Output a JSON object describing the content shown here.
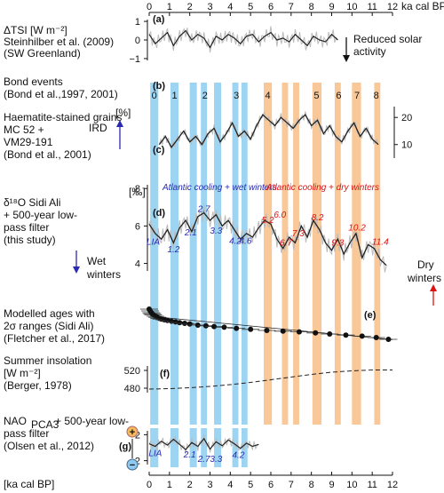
{
  "chart_data": {
    "type": "line",
    "x_axis": {
      "label_top": "ka cal BP",
      "label_bottom": "[ka cal BP]",
      "range": [
        0,
        12
      ],
      "ticks": [
        0,
        1,
        2,
        3,
        4,
        5,
        6,
        7,
        8,
        9,
        10,
        11,
        12
      ]
    },
    "bands": {
      "blue": [
        [
          0.05,
          0.45
        ],
        [
          1.05,
          1.45
        ],
        [
          2.0,
          2.35
        ],
        [
          2.55,
          2.85
        ],
        [
          3.2,
          3.55
        ],
        [
          4.1,
          4.4
        ],
        [
          4.55,
          4.85
        ]
      ],
      "orange": [
        [
          5.65,
          6.05
        ],
        [
          6.55,
          6.85
        ],
        [
          7.1,
          7.4
        ],
        [
          8.05,
          8.5
        ],
        [
          9.15,
          9.45
        ],
        [
          10.0,
          10.45
        ],
        [
          11.1,
          11.4
        ]
      ],
      "blue_color": "#7cc6ee",
      "orange_color": "#f7b677"
    },
    "panels": {
      "a": {
        "letter": "(a)",
        "title": [
          "ΔTSI  [W m⁻²]",
          "Steinhilber et al. (2009)",
          "(SW Greenland)"
        ],
        "yticks": [
          1,
          0,
          -1
        ],
        "ylim": [
          -1.1,
          1.1
        ],
        "annotation": [
          "Reduced solar",
          "activity"
        ],
        "x": [
          0,
          0.3,
          0.6,
          0.9,
          1.2,
          1.5,
          1.8,
          2.1,
          2.4,
          2.7,
          3.0,
          3.3,
          3.6,
          3.9,
          4.2,
          4.5,
          4.8,
          5.1,
          5.4,
          5.7,
          6.0,
          6.3,
          6.6,
          6.9,
          7.2,
          7.5,
          7.8,
          8.1,
          8.4,
          8.7,
          9.0,
          9.3
        ],
        "y": [
          0.3,
          -0.2,
          0.1,
          0.4,
          -0.3,
          0.2,
          0.5,
          0.0,
          0.3,
          0.1,
          -0.4,
          0.2,
          0.0,
          0.3,
          0.1,
          -0.2,
          0.2,
          0.3,
          -0.1,
          0.2,
          0.4,
          0.0,
          0.1,
          -0.1,
          0.3,
          0.0,
          -0.3,
          0.2,
          0.0,
          -0.1,
          0.3,
          0.0
        ]
      },
      "b": {
        "letter": "(b)",
        "title": [
          "Bond events",
          "(Bond et al.,1997, 2001)"
        ],
        "event_numbers": [
          {
            "label": "0",
            "x": 0.25,
            "color": "#111"
          },
          {
            "label": "1",
            "x": 1.25,
            "color": "#111"
          },
          {
            "label": "2",
            "x": 2.75,
            "color": "#111"
          },
          {
            "label": "3",
            "x": 4.3,
            "color": "#111"
          },
          {
            "label": "4",
            "x": 5.85,
            "color": "#111"
          },
          {
            "label": "5",
            "x": 8.25,
            "color": "#111"
          },
          {
            "label": "6",
            "x": 9.35,
            "color": "#888"
          },
          {
            "label": "7",
            "x": 10.25,
            "color": "#888"
          },
          {
            "label": "8",
            "x": 11.2,
            "color": "#888"
          }
        ]
      },
      "c": {
        "letter": "(c)",
        "title": [
          "Haematite-stained grains",
          "MC 52 +",
          "VM29-191",
          "(Bond et al., 2001)"
        ],
        "ylabel": "[%]",
        "ird_label": "IRD",
        "yticks": [
          20,
          10
        ],
        "ylim": [
          5,
          24
        ],
        "x": [
          0.5,
          0.8,
          1.1,
          1.4,
          1.7,
          2.0,
          2.3,
          2.6,
          2.9,
          3.2,
          3.5,
          3.8,
          4.1,
          4.4,
          4.7,
          5.0,
          5.3,
          5.6,
          5.9,
          6.2,
          6.5,
          6.8,
          7.1,
          7.4,
          7.7,
          8.0,
          8.3,
          8.6,
          8.9,
          9.2,
          9.5,
          9.8,
          10.1,
          10.4,
          10.7,
          11.0,
          11.3
        ],
        "y": [
          10,
          13,
          9,
          12,
          15,
          11,
          13,
          10,
          14,
          16,
          11,
          14,
          18,
          13,
          15,
          12,
          17,
          21,
          19,
          17,
          20,
          18,
          16,
          19,
          21,
          17,
          19,
          14,
          17,
          13,
          11,
          15,
          18,
          13,
          16,
          12,
          10
        ]
      },
      "d": {
        "letter": "(d)",
        "title": [
          "δ¹⁸O Sidi Ali",
          "+ 500-year low-",
          "pass filter",
          "(this study)"
        ],
        "ylabel": "[‰]",
        "yticks": [
          8,
          6,
          4
        ],
        "ylim": [
          3.6,
          8.2
        ],
        "header_blue": "Atlantic cooling + wet winters",
        "header_red": "Atlantic cooling + dry winters",
        "wet_label": "Wet",
        "wet_label2": "winters",
        "dry_label": "Dry",
        "dry_label2": "winters",
        "x": [
          0,
          0.3,
          0.6,
          0.9,
          1.2,
          1.5,
          1.8,
          2.1,
          2.4,
          2.7,
          3.0,
          3.3,
          3.6,
          3.9,
          4.2,
          4.5,
          4.8,
          5.1,
          5.4,
          5.7,
          6.0,
          6.3,
          6.6,
          6.9,
          7.2,
          7.5,
          7.8,
          8.1,
          8.4,
          8.7,
          9.0,
          9.3,
          9.6,
          9.9,
          10.2,
          10.5,
          10.8,
          11.1,
          11.4,
          11.7
        ],
        "y": [
          6.1,
          5.6,
          5.3,
          5.8,
          5.1,
          5.9,
          6.3,
          5.7,
          6.5,
          6.7,
          6.3,
          6.6,
          6.0,
          6.3,
          5.8,
          5.3,
          5.6,
          5.4,
          5.9,
          6.3,
          6.1,
          5.3,
          4.8,
          5.4,
          5.1,
          6.0,
          5.4,
          6.3,
          5.8,
          5.1,
          4.7,
          5.3,
          4.5,
          5.1,
          5.6,
          4.3,
          5.0,
          4.8,
          4.2,
          3.9
        ],
        "event_labels_blue": [
          {
            "text": "LIA",
            "x": 0.2,
            "y": 5.0
          },
          {
            "text": "1.2",
            "x": 1.2,
            "y": 4.6
          },
          {
            "text": "2.1",
            "x": 2.05,
            "y": 5.5
          },
          {
            "text": "2.7",
            "x": 2.7,
            "y": 6.75
          },
          {
            "text": "3.3",
            "x": 3.3,
            "y": 5.6
          },
          {
            "text": "4.2",
            "x": 4.25,
            "y": 5.05
          },
          {
            "text": "4.6",
            "x": 4.75,
            "y": 5.05
          }
        ],
        "event_labels_red": [
          {
            "text": "5.2",
            "x": 5.85,
            "y": 6.15
          },
          {
            "text": "6.0",
            "x": 6.45,
            "y": 6.45
          },
          {
            "text": "6.7",
            "x": 6.75,
            "y": 4.95
          },
          {
            "text": "7.3",
            "x": 7.35,
            "y": 5.45
          },
          {
            "text": "8.2",
            "x": 8.3,
            "y": 6.3
          },
          {
            "text": "9.3",
            "x": 9.3,
            "y": 4.95
          },
          {
            "text": "10.2",
            "x": 10.25,
            "y": 5.75
          },
          {
            "text": "11.4",
            "x": 11.4,
            "y": 5.0
          }
        ]
      },
      "e": {
        "letter": "(e)",
        "title": [
          "Modelled ages with",
          "2σ ranges (Sidi Ali)",
          "(Fletcher et al., 2017)"
        ],
        "x": [
          0.0,
          0.05,
          0.1,
          0.15,
          0.2,
          0.3,
          0.4,
          0.5,
          0.6,
          0.75,
          0.9,
          1.1,
          1.3,
          1.5,
          1.75,
          2.0,
          2.4,
          2.8,
          3.2,
          3.7,
          4.3,
          5.0,
          5.8,
          6.6,
          7.4,
          8.2,
          8.9,
          9.7,
          10.5,
          11.2,
          11.8
        ],
        "y": [
          0.0,
          0.05,
          0.1,
          0.13,
          0.16,
          0.2,
          0.23,
          0.26,
          0.28,
          0.3,
          0.32,
          0.34,
          0.36,
          0.38,
          0.4,
          0.42,
          0.45,
          0.47,
          0.49,
          0.51,
          0.54,
          0.57,
          0.6,
          0.62,
          0.64,
          0.67,
          0.7,
          0.73,
          0.76,
          0.8,
          0.85
        ]
      },
      "f": {
        "letter": "(f)",
        "title": [
          "Summer insolation",
          "[W m⁻²]",
          "(Berger, 1978)"
        ],
        "yticks": [
          480,
          520
        ],
        "ylim": [
          470,
          530
        ],
        "x": [
          0,
          1,
          2,
          3,
          4,
          5,
          6,
          7,
          8,
          9,
          10,
          11,
          12
        ],
        "y": [
          478,
          479,
          481,
          484,
          488,
          493,
          499,
          505,
          511,
          516,
          519,
          521,
          521
        ]
      },
      "g": {
        "letter": "(g)",
        "title": [
          "NAO",
          "PCA3",
          " + 500-year low-",
          "pass filter",
          "(Olsen et al., 2012)"
        ],
        "yticks": [
          2,
          -2
        ],
        "ylim": [
          -2.6,
          2.6
        ],
        "plus_sign": "+",
        "minus_sign": "−",
        "x": [
          0,
          0.3,
          0.6,
          0.9,
          1.2,
          1.5,
          1.8,
          2.1,
          2.4,
          2.7,
          3.0,
          3.3,
          3.6,
          3.9,
          4.2,
          4.5,
          4.8,
          5.1,
          5.4
        ],
        "y": [
          0.6,
          0.2,
          1.0,
          0.4,
          1.3,
          0.5,
          -0.3,
          0.8,
          0.2,
          1.4,
          -0.2,
          0.9,
          0.3,
          1.2,
          0.6,
          -0.1,
          0.7,
          0.2,
          0.5
        ],
        "event_labels": [
          {
            "text": "LIA",
            "x": 0.3,
            "y": -1.3
          },
          {
            "text": "2.1",
            "x": 2.0,
            "y": -1.5
          },
          {
            "text": "2.7",
            "x": 2.7,
            "y": -2.2
          },
          {
            "text": "3.3",
            "x": 3.3,
            "y": -2.2
          },
          {
            "text": "4.2",
            "x": 4.4,
            "y": -1.6
          }
        ]
      }
    }
  }
}
